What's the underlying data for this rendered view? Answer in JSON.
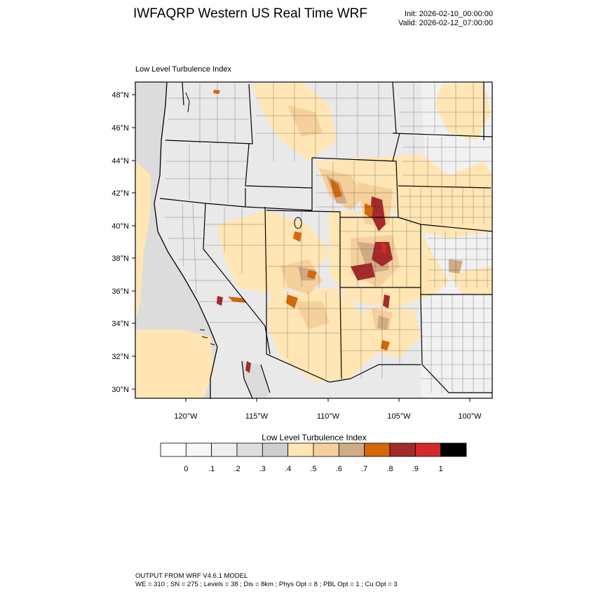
{
  "header": {
    "title": "IWFAQRP Western US Real Time WRF",
    "init": "Init: 2026-02-10_00:00:00",
    "valid": "Valid: 2026-02-12_07:00:00"
  },
  "panel_title": "Low Level Turbulence Index",
  "map": {
    "variable": "Low Level Turbulence Index",
    "lat_range": [
      29.5,
      48.8
    ],
    "lon_range": [
      -123.7,
      -98.4
    ],
    "lat_ticks": [
      "30°N",
      "32°N",
      "34°N",
      "36°N",
      "38°N",
      "40°N",
      "42°N",
      "44°N",
      "46°N",
      "48°N"
    ],
    "lon_ticks": [
      "120°W",
      "115°W",
      "110°W",
      "105°W",
      "100°W"
    ]
  },
  "colorbar": {
    "title": "Low Level Turbulence Index",
    "labels": [
      "0",
      ".1",
      ".2",
      ".3",
      ".4",
      ".5",
      ".6",
      ".7",
      ".8",
      ".9",
      "1"
    ],
    "colors": [
      "#ffffff",
      "#f7f7f7",
      "#efefef",
      "#dedede",
      "#cfcfcf",
      "#ffe6b4",
      "#f5d09a",
      "#d1ab86",
      "#d4680a",
      "#a52a2a",
      "#d32a2a",
      "#000000"
    ]
  },
  "footer": {
    "line1": "OUTPUT FROM WRF V4.6.1 MODEL",
    "line2": "WE = 310 ; SN = 275 ; Levels = 38 ; Dis = 8km ; Phys Opt = 8 ; PBL Opt = 1 ; Cu Opt = 3"
  }
}
